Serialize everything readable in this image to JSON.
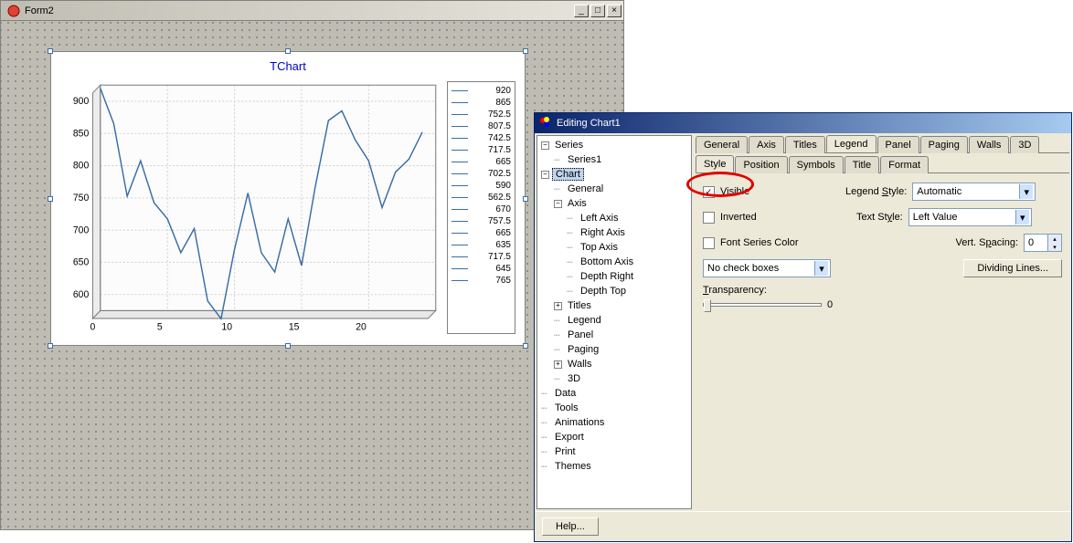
{
  "form": {
    "title": "Form2",
    "chart": {
      "type": "line",
      "title": "TChart",
      "title_color": "#0000cc",
      "line_color": "#3a6ea5",
      "background_color": "#ffffff",
      "grid_color": "#d4d4d4",
      "xlim": [
        0,
        25
      ],
      "xtick_step": 5,
      "xtick_labels": [
        "0",
        "5",
        "10",
        "15",
        "20",
        ""
      ],
      "ylim": [
        575,
        925
      ],
      "ytick_step": 50,
      "ytick_labels": [
        "900",
        "850",
        "800",
        "750",
        "700",
        "650",
        "600"
      ],
      "data_points": [
        [
          0,
          920
        ],
        [
          1,
          865
        ],
        [
          2,
          752.5
        ],
        [
          3,
          807.5
        ],
        [
          4,
          742.5
        ],
        [
          5,
          717.5
        ],
        [
          6,
          665
        ],
        [
          7,
          702.5
        ],
        [
          8,
          590
        ],
        [
          9,
          562.5
        ],
        [
          10,
          670
        ],
        [
          11,
          757.5
        ],
        [
          12,
          665
        ],
        [
          13,
          635
        ],
        [
          14,
          717.5
        ],
        [
          15,
          645
        ],
        [
          16,
          765
        ],
        [
          17,
          870
        ],
        [
          18,
          885
        ],
        [
          19,
          840
        ],
        [
          20,
          807.5
        ],
        [
          21,
          735
        ],
        [
          22,
          790
        ],
        [
          23,
          810
        ],
        [
          24,
          852
        ]
      ],
      "legend_values": [
        "920",
        "865",
        "752.5",
        "807.5",
        "742.5",
        "717.5",
        "665",
        "702.5",
        "590",
        "562.5",
        "670",
        "757.5",
        "665",
        "635",
        "717.5",
        "645",
        "765"
      ]
    }
  },
  "editor": {
    "title": "Editing Chart1",
    "tree": {
      "series_root": "Series",
      "series_item": "Series1",
      "chart_root": "Chart",
      "general": "General",
      "axis": "Axis",
      "axis_children": [
        "Left Axis",
        "Right Axis",
        "Top Axis",
        "Bottom Axis",
        "Depth Right",
        "Depth Top"
      ],
      "titles": "Titles",
      "legend": "Legend",
      "panel": "Panel",
      "paging": "Paging",
      "walls": "Walls",
      "threeD": "3D",
      "data": "Data",
      "tools": "Tools",
      "animations": "Animations",
      "export": "Export",
      "print": "Print",
      "themes": "Themes"
    },
    "tabs": [
      "General",
      "Axis",
      "Titles",
      "Legend",
      "Panel",
      "Paging",
      "Walls",
      "3D"
    ],
    "active_tab": "Legend",
    "subtabs": [
      "Style",
      "Position",
      "Symbols",
      "Title",
      "Format"
    ],
    "active_subtab": "Style",
    "style": {
      "visible_label": "Visible",
      "visible_checked": true,
      "inverted_label": "Inverted",
      "inverted_checked": false,
      "font_series_label": "Font Series Color",
      "font_series_checked": false,
      "legend_style_label": "Legend Style:",
      "legend_style_value": "Automatic",
      "text_style_label": "Text Style:",
      "text_style_value": "Left Value",
      "vert_spacing_label": "Vert. Spacing:",
      "vert_spacing_value": "0",
      "checkboxes_combo": "No check boxes",
      "dividing_lines_btn": "Dividing Lines...",
      "transparency_label": "Transparency:",
      "transparency_value": "0"
    },
    "help_btn": "Help..."
  }
}
